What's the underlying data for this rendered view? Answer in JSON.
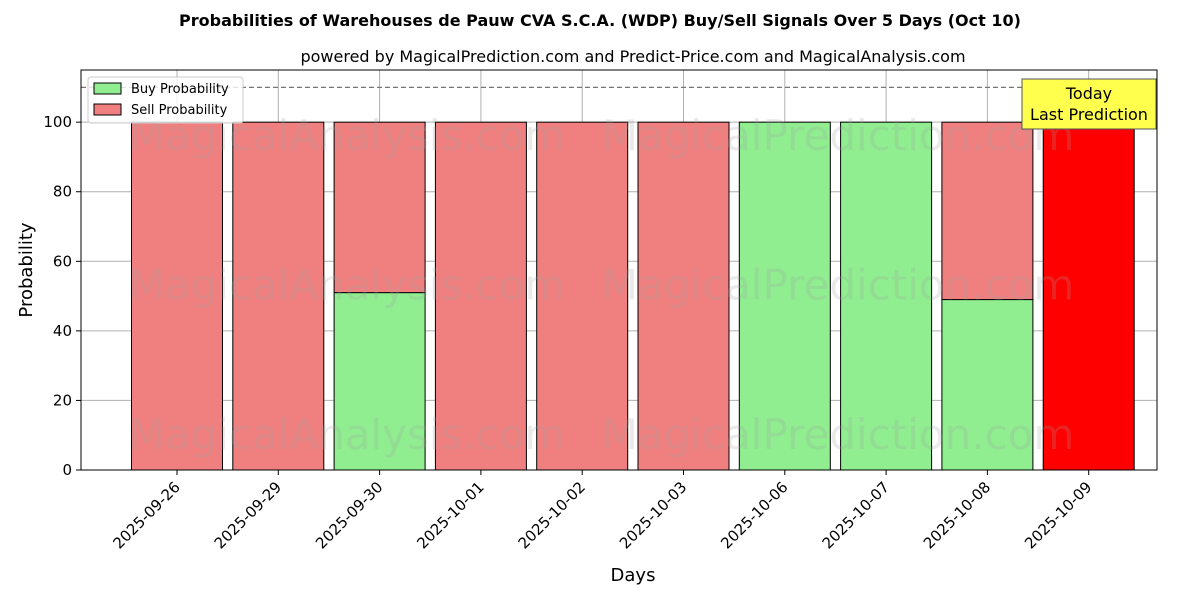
{
  "chart_data": {
    "type": "bar",
    "stacked": true,
    "title": "Probabilities of Warehouses de Pauw CVA S.C.A. (WDP) Buy/Sell Signals Over 5 Days (Oct 10)",
    "subtitle": "powered by MagicalPrediction.com and Predict-Price.com and MagicalAnalysis.com",
    "xlabel": "Days",
    "ylabel": "Probability",
    "ylim": [
      0,
      115
    ],
    "yticks": [
      0,
      20,
      40,
      60,
      80,
      100
    ],
    "grid": true,
    "legend_position": "top-left",
    "reference_line": 110,
    "categories": [
      "2025-09-26",
      "2025-09-29",
      "2025-09-30",
      "2025-10-01",
      "2025-10-02",
      "2025-10-03",
      "2025-10-06",
      "2025-10-07",
      "2025-10-08",
      "2025-10-09"
    ],
    "series": [
      {
        "name": "Buy Probability",
        "color": "#90ee90",
        "values": [
          0,
          0,
          51,
          0,
          0,
          0,
          100,
          100,
          49,
          0
        ]
      },
      {
        "name": "Sell Probability",
        "color": "#f08080",
        "values": [
          100,
          100,
          49,
          100,
          100,
          100,
          0,
          0,
          51,
          100
        ]
      }
    ],
    "highlight": {
      "category": "2025-10-09",
      "color": "#ff0000"
    },
    "annotation": {
      "line1": "Today",
      "line2": "Last Prediction",
      "color": "#ffff4d"
    }
  },
  "watermarks": [
    "MagicalAnalysis.com",
    "MagicalPrediction.com"
  ]
}
